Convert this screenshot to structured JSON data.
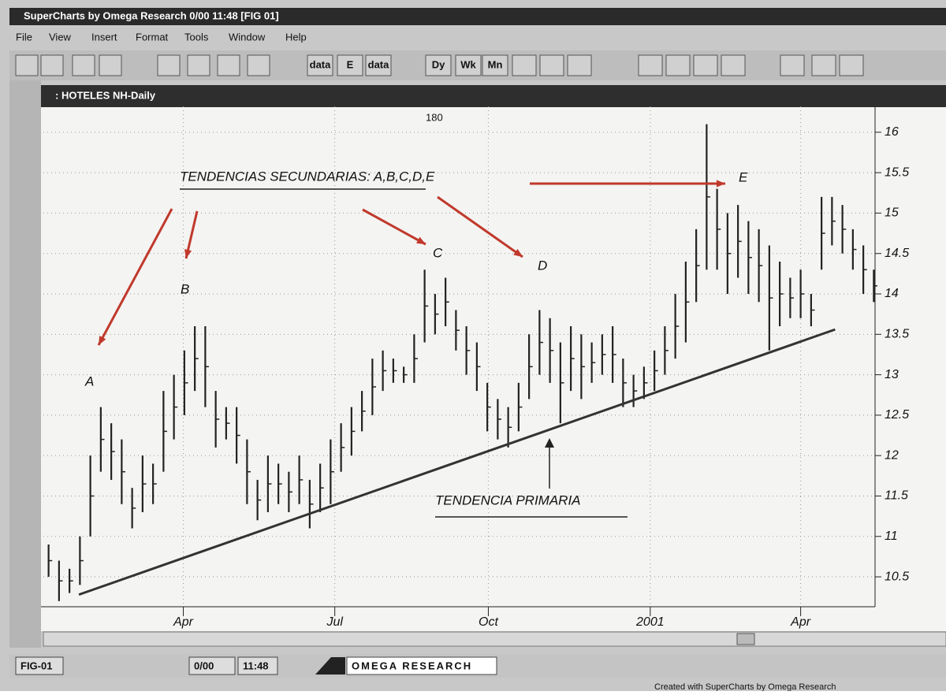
{
  "ui": {
    "window_title": "SuperCharts by Omega Research 0/00 11:48 [FIG 01]",
    "menu": [
      "File",
      "View",
      "Insert",
      "Format",
      "Tools",
      "Window",
      "Help"
    ],
    "toolbar": [
      "data",
      "E",
      "data",
      "Dy",
      "Wk",
      "Mn"
    ],
    "chart_window_title": ": HOTELES NH-Daily",
    "status": [
      "FIG-01",
      "0/00",
      "11:48",
      "OMEGA RESEARCH"
    ],
    "footer": "Created with SuperCharts by Omega Research"
  },
  "chart_data": {
    "type": "range_bar",
    "top_label": "180",
    "annotations": {
      "secondary": "TENDENCIAS SECUNDARIAS: A,B,C,D,E",
      "primary": "TENDENCIA PRIMARIA",
      "letters": [
        "A",
        "B",
        "C",
        "D",
        "E"
      ]
    },
    "series": [
      {
        "name": "HOTELES NH",
        "color": "#222222",
        "high": [
          10.9,
          10.7,
          10.6,
          11.0,
          12.0,
          12.6,
          12.4,
          12.2,
          11.6,
          12.0,
          11.9,
          12.8,
          13.0,
          13.3,
          13.6,
          13.6,
          12.8,
          12.6,
          12.6,
          12.2,
          11.7,
          12.0,
          11.9,
          11.8,
          12.0,
          11.7,
          11.9,
          12.2,
          12.4,
          12.6,
          12.8,
          13.2,
          13.3,
          13.2,
          13.1,
          13.5,
          14.3,
          14.0,
          14.2,
          13.8,
          13.6,
          13.4,
          12.9,
          12.7,
          12.6,
          12.9,
          13.5,
          13.8,
          13.7,
          13.4,
          13.6,
          13.5,
          13.4,
          13.5,
          13.6,
          13.2,
          13.0,
          13.1,
          13.3,
          13.6,
          14.0,
          14.4,
          14.8,
          16.1,
          15.3,
          15.0,
          15.1,
          14.9,
          14.8,
          14.6,
          14.4,
          14.2,
          14.3,
          14.0,
          15.2,
          15.2,
          15.1,
          14.8,
          14.6,
          14.3
        ],
        "low": [
          10.5,
          10.2,
          10.3,
          10.4,
          11.0,
          11.8,
          11.7,
          11.4,
          11.1,
          11.3,
          11.4,
          11.8,
          12.2,
          12.5,
          12.8,
          12.6,
          12.1,
          12.2,
          11.9,
          11.4,
          11.2,
          11.3,
          11.4,
          11.3,
          11.4,
          11.1,
          11.3,
          11.4,
          11.8,
          12.0,
          12.3,
          12.5,
          12.8,
          12.9,
          12.9,
          12.9,
          13.4,
          13.5,
          13.6,
          13.3,
          13.0,
          12.8,
          12.3,
          12.2,
          12.1,
          12.3,
          12.7,
          13.0,
          12.9,
          12.4,
          12.8,
          12.7,
          12.9,
          13.0,
          12.9,
          12.6,
          12.6,
          12.7,
          12.8,
          13.0,
          13.2,
          13.4,
          13.9,
          14.3,
          14.3,
          14.0,
          14.2,
          14.0,
          13.9,
          13.3,
          13.6,
          13.7,
          13.7,
          13.6,
          14.3,
          14.6,
          14.5,
          14.3,
          14.0,
          13.9
        ]
      }
    ],
    "trendline": {
      "x": [
        3.4,
        75.8
      ],
      "y": [
        10.28,
        13.56
      ],
      "color": "#333333"
    },
    "xlim": [
      0,
      80
    ],
    "xticks": [
      {
        "value": 13.4,
        "label": "Apr"
      },
      {
        "value": 27.9,
        "label": "Jul"
      },
      {
        "value": 42.6,
        "label": "Oct"
      },
      {
        "value": 58.1,
        "label": "2001"
      },
      {
        "value": 72.5,
        "label": "Apr"
      }
    ],
    "ylim": [
      10.13,
      16.32
    ],
    "yticks": [
      10.5,
      11,
      11.5,
      12,
      12.5,
      13,
      13.5,
      14,
      14.5,
      15,
      15.5,
      16
    ],
    "grid": true,
    "arrow_color": "#c0392b"
  }
}
